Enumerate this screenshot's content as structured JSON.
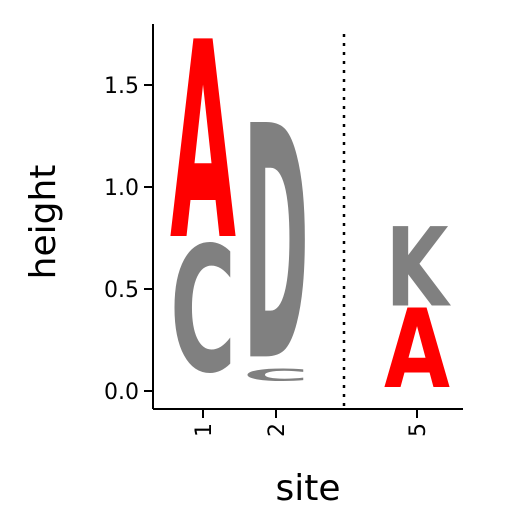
{
  "chart_data": {
    "type": "logo",
    "xlabel": "site",
    "ylabel": "height",
    "ylim": [
      -0.08,
      1.8
    ],
    "yticks": [
      0.0,
      0.5,
      1.0,
      1.5
    ],
    "ytick_labels": [
      "0.0",
      "0.5",
      "1.0",
      "1.5"
    ],
    "sites": [
      {
        "label": "1",
        "letters": [
          {
            "char": "C",
            "y0": 0.1,
            "y1": 0.72,
            "color": "#808080"
          },
          {
            "char": "A",
            "y0": 0.76,
            "y1": 1.73,
            "color": "#ff0000"
          }
        ]
      },
      {
        "label": "2",
        "letters": [
          {
            "char": "C",
            "y0": 0.05,
            "y1": 0.11,
            "color": "#808080"
          },
          {
            "char": "D",
            "y0": 0.17,
            "y1": 1.32,
            "color": "#808080"
          }
        ]
      },
      {
        "label": "5",
        "letters": [
          {
            "char": "A",
            "y0": 0.02,
            "y1": 0.41,
            "color": "#ff0000"
          },
          {
            "char": "K",
            "y0": 0.42,
            "y1": 0.81,
            "color": "#808080"
          }
        ]
      }
    ],
    "separator": {
      "between": [
        "2",
        "5"
      ],
      "style": "dotted"
    },
    "grid": false,
    "legend": "none"
  }
}
